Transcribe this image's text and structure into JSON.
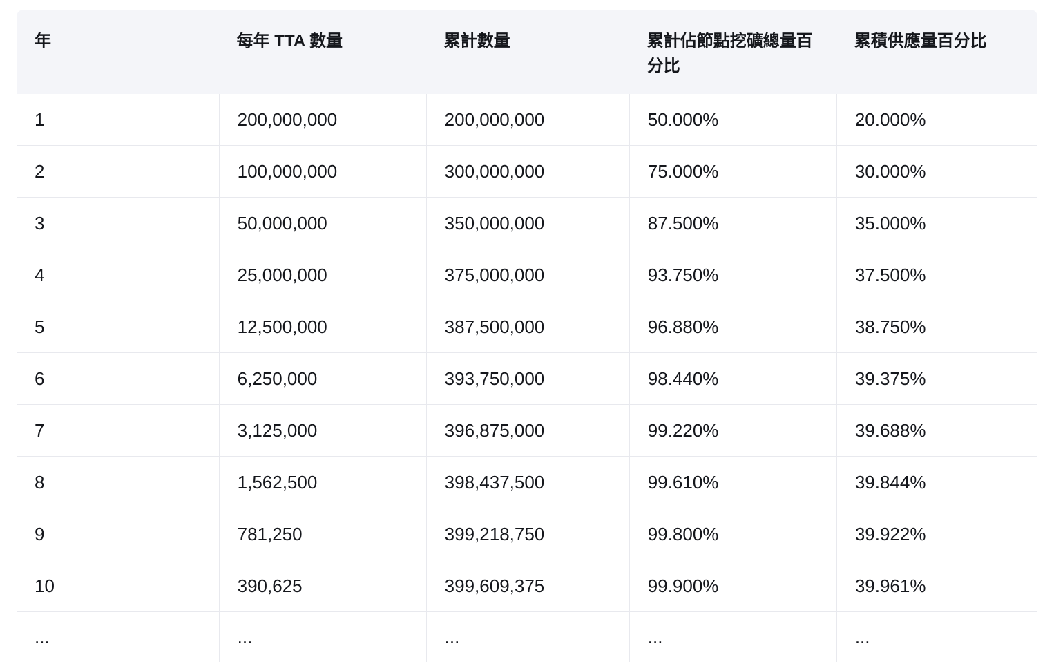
{
  "table": {
    "headers": [
      "年",
      "每年 TTA 數量",
      "累計數量",
      "累計佔節點挖礦總量百分比",
      "累積供應量百分比"
    ],
    "rows": [
      [
        "1",
        "200,000,000",
        "200,000,000",
        "50.000%",
        "20.000%"
      ],
      [
        "2",
        "100,000,000",
        "300,000,000",
        "75.000%",
        "30.000%"
      ],
      [
        "3",
        "50,000,000",
        "350,000,000",
        "87.500%",
        "35.000%"
      ],
      [
        "4",
        "25,000,000",
        "375,000,000",
        "93.750%",
        "37.500%"
      ],
      [
        "5",
        "12,500,000",
        "387,500,000",
        "96.880%",
        "38.750%"
      ],
      [
        "6",
        "6,250,000",
        "393,750,000",
        "98.440%",
        "39.375%"
      ],
      [
        "7",
        "3,125,000",
        "396,875,000",
        "99.220%",
        "39.688%"
      ],
      [
        "8",
        "1,562,500",
        "398,437,500",
        "99.610%",
        "39.844%"
      ],
      [
        "9",
        "781,250",
        "399,218,750",
        "99.800%",
        "39.922%"
      ],
      [
        "10",
        "390,625",
        "399,609,375",
        "99.900%",
        "39.961%"
      ],
      [
        "...",
        "...",
        "...",
        "...",
        "..."
      ]
    ]
  },
  "colors": {
    "header_bg": "#f4f5f9",
    "border": "#e8e9ee",
    "text": "#15171c",
    "page_bg": "#ffffff"
  }
}
